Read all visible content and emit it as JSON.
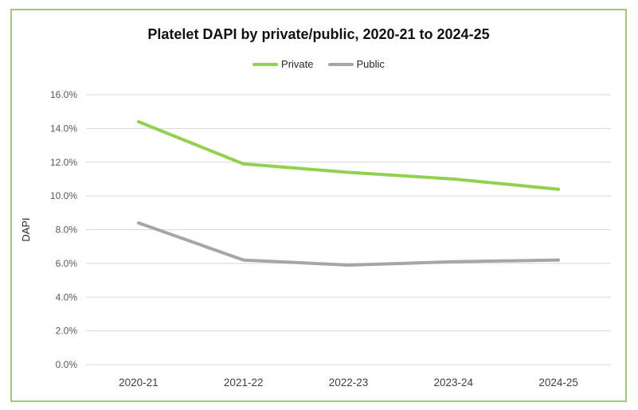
{
  "frame": {
    "border_color": "#a0c878",
    "background": "#ffffff"
  },
  "chart_data": {
    "type": "line",
    "title": "Platelet DAPI by private/public, 2020-21 to 2024-25",
    "xlabel": "",
    "ylabel": "DAPI",
    "categories": [
      "2020-21",
      "2021-22",
      "2022-23",
      "2023-24",
      "2024-25"
    ],
    "series": [
      {
        "name": "Private",
        "color": "#92d050",
        "values": [
          14.4,
          11.9,
          11.4,
          11.0,
          10.4
        ]
      },
      {
        "name": "Public",
        "color": "#a6a6a6",
        "values": [
          8.4,
          6.2,
          5.9,
          6.1,
          6.2
        ]
      }
    ],
    "ylim": [
      0,
      16
    ],
    "ytick_step": 2,
    "ytick_labels": [
      "0.0%",
      "2.0%",
      "4.0%",
      "6.0%",
      "8.0%",
      "10.0%",
      "12.0%",
      "14.0%",
      "16.0%"
    ],
    "grid": true,
    "legend_position": "top",
    "gridline_color": "#d9d9d9",
    "tick_label_color": "#595959",
    "category_label_color": "#3f3f3f",
    "axis_title_color": "#262626"
  }
}
